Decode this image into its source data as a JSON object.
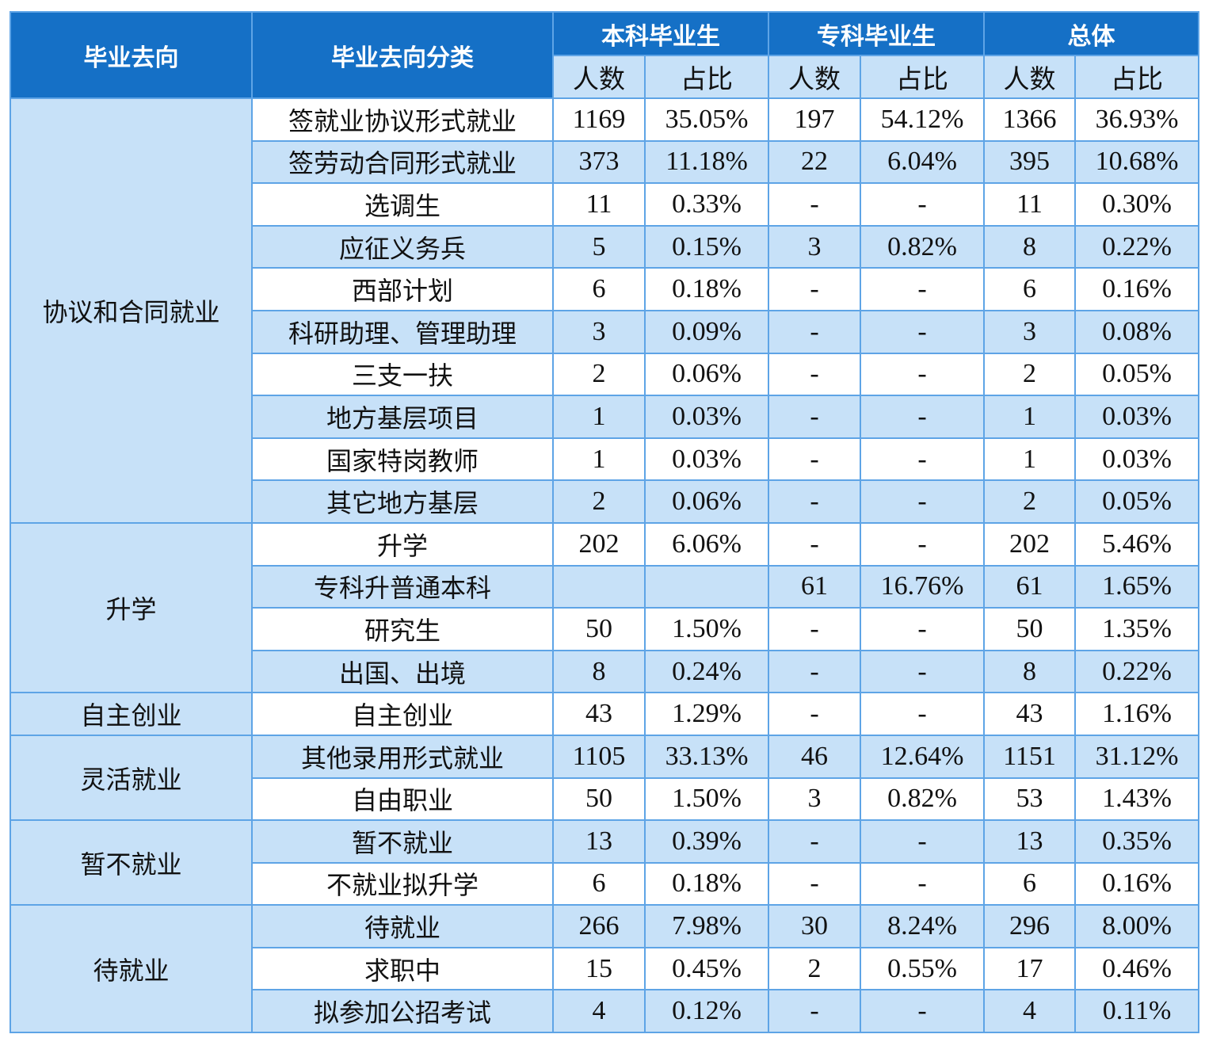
{
  "header": {
    "col_destination": "毕业去向",
    "col_category": "毕业去向分类",
    "group_undergrad": "本科毕业生",
    "group_college": "专科毕业生",
    "group_total": "总体",
    "count_label": "人数",
    "ratio_label": "占比"
  },
  "colors": {
    "header_bg": "#1570c6",
    "header_text": "#ffffff",
    "light_blue_bg": "#c7e1f8",
    "border": "#5ea4e6"
  },
  "groups": [
    {
      "name": "协议和合同就业",
      "rows": [
        {
          "category": "签就业协议形式就业",
          "ug_count": "1169",
          "ug_ratio": "35.05%",
          "col_count": "197",
          "col_ratio": "54.12%",
          "total_count": "1366",
          "total_ratio": "36.93%"
        },
        {
          "category": "签劳动合同形式就业",
          "ug_count": "373",
          "ug_ratio": "11.18%",
          "col_count": "22",
          "col_ratio": "6.04%",
          "total_count": "395",
          "total_ratio": "10.68%"
        },
        {
          "category": "选调生",
          "ug_count": "11",
          "ug_ratio": "0.33%",
          "col_count": "-",
          "col_ratio": "-",
          "total_count": "11",
          "total_ratio": "0.30%"
        },
        {
          "category": "应征义务兵",
          "ug_count": "5",
          "ug_ratio": "0.15%",
          "col_count": "3",
          "col_ratio": "0.82%",
          "total_count": "8",
          "total_ratio": "0.22%"
        },
        {
          "category": "西部计划",
          "ug_count": "6",
          "ug_ratio": "0.18%",
          "col_count": "-",
          "col_ratio": "-",
          "total_count": "6",
          "total_ratio": "0.16%"
        },
        {
          "category": "科研助理、管理助理",
          "ug_count": "3",
          "ug_ratio": "0.09%",
          "col_count": "-",
          "col_ratio": "-",
          "total_count": "3",
          "total_ratio": "0.08%"
        },
        {
          "category": "三支一扶",
          "ug_count": "2",
          "ug_ratio": "0.06%",
          "col_count": "-",
          "col_ratio": "-",
          "total_count": "2",
          "total_ratio": "0.05%"
        },
        {
          "category": "地方基层项目",
          "ug_count": "1",
          "ug_ratio": "0.03%",
          "col_count": "-",
          "col_ratio": "-",
          "total_count": "1",
          "total_ratio": "0.03%"
        },
        {
          "category": "国家特岗教师",
          "ug_count": "1",
          "ug_ratio": "0.03%",
          "col_count": "-",
          "col_ratio": "-",
          "total_count": "1",
          "total_ratio": "0.03%"
        },
        {
          "category": "其它地方基层",
          "ug_count": "2",
          "ug_ratio": "0.06%",
          "col_count": "-",
          "col_ratio": "-",
          "total_count": "2",
          "total_ratio": "0.05%"
        }
      ]
    },
    {
      "name": "升学",
      "rows": [
        {
          "category": "升学",
          "ug_count": "202",
          "ug_ratio": "6.06%",
          "col_count": "-",
          "col_ratio": "-",
          "total_count": "202",
          "total_ratio": "5.46%"
        },
        {
          "category": "专科升普通本科",
          "ug_count": "",
          "ug_ratio": "",
          "col_count": "61",
          "col_ratio": "16.76%",
          "total_count": "61",
          "total_ratio": "1.65%"
        },
        {
          "category": "研究生",
          "ug_count": "50",
          "ug_ratio": "1.50%",
          "col_count": "-",
          "col_ratio": "-",
          "total_count": "50",
          "total_ratio": "1.35%"
        },
        {
          "category": "出国、出境",
          "ug_count": "8",
          "ug_ratio": "0.24%",
          "col_count": "-",
          "col_ratio": "-",
          "total_count": "8",
          "total_ratio": "0.22%"
        }
      ]
    },
    {
      "name": "自主创业",
      "rows": [
        {
          "category": "自主创业",
          "ug_count": "43",
          "ug_ratio": "1.29%",
          "col_count": "-",
          "col_ratio": "-",
          "total_count": "43",
          "total_ratio": "1.16%"
        }
      ]
    },
    {
      "name": "灵活就业",
      "rows": [
        {
          "category": "其他录用形式就业",
          "ug_count": "1105",
          "ug_ratio": "33.13%",
          "col_count": "46",
          "col_ratio": "12.64%",
          "total_count": "1151",
          "total_ratio": "31.12%"
        },
        {
          "category": "自由职业",
          "ug_count": "50",
          "ug_ratio": "1.50%",
          "col_count": "3",
          "col_ratio": "0.82%",
          "total_count": "53",
          "total_ratio": "1.43%"
        }
      ]
    },
    {
      "name": "暂不就业",
      "rows": [
        {
          "category": "暂不就业",
          "ug_count": "13",
          "ug_ratio": "0.39%",
          "col_count": "-",
          "col_ratio": "-",
          "total_count": "13",
          "total_ratio": "0.35%"
        },
        {
          "category": "不就业拟升学",
          "ug_count": "6",
          "ug_ratio": "0.18%",
          "col_count": "-",
          "col_ratio": "-",
          "total_count": "6",
          "total_ratio": "0.16%"
        }
      ]
    },
    {
      "name": "待就业",
      "rows": [
        {
          "category": "待就业",
          "ug_count": "266",
          "ug_ratio": "7.98%",
          "col_count": "30",
          "col_ratio": "8.24%",
          "total_count": "296",
          "total_ratio": "8.00%"
        },
        {
          "category": "求职中",
          "ug_count": "15",
          "ug_ratio": "0.45%",
          "col_count": "2",
          "col_ratio": "0.55%",
          "total_count": "17",
          "total_ratio": "0.46%"
        },
        {
          "category": "拟参加公招考试",
          "ug_count": "4",
          "ug_ratio": "0.12%",
          "col_count": "-",
          "col_ratio": "-",
          "total_count": "4",
          "total_ratio": "0.11%"
        }
      ]
    }
  ]
}
